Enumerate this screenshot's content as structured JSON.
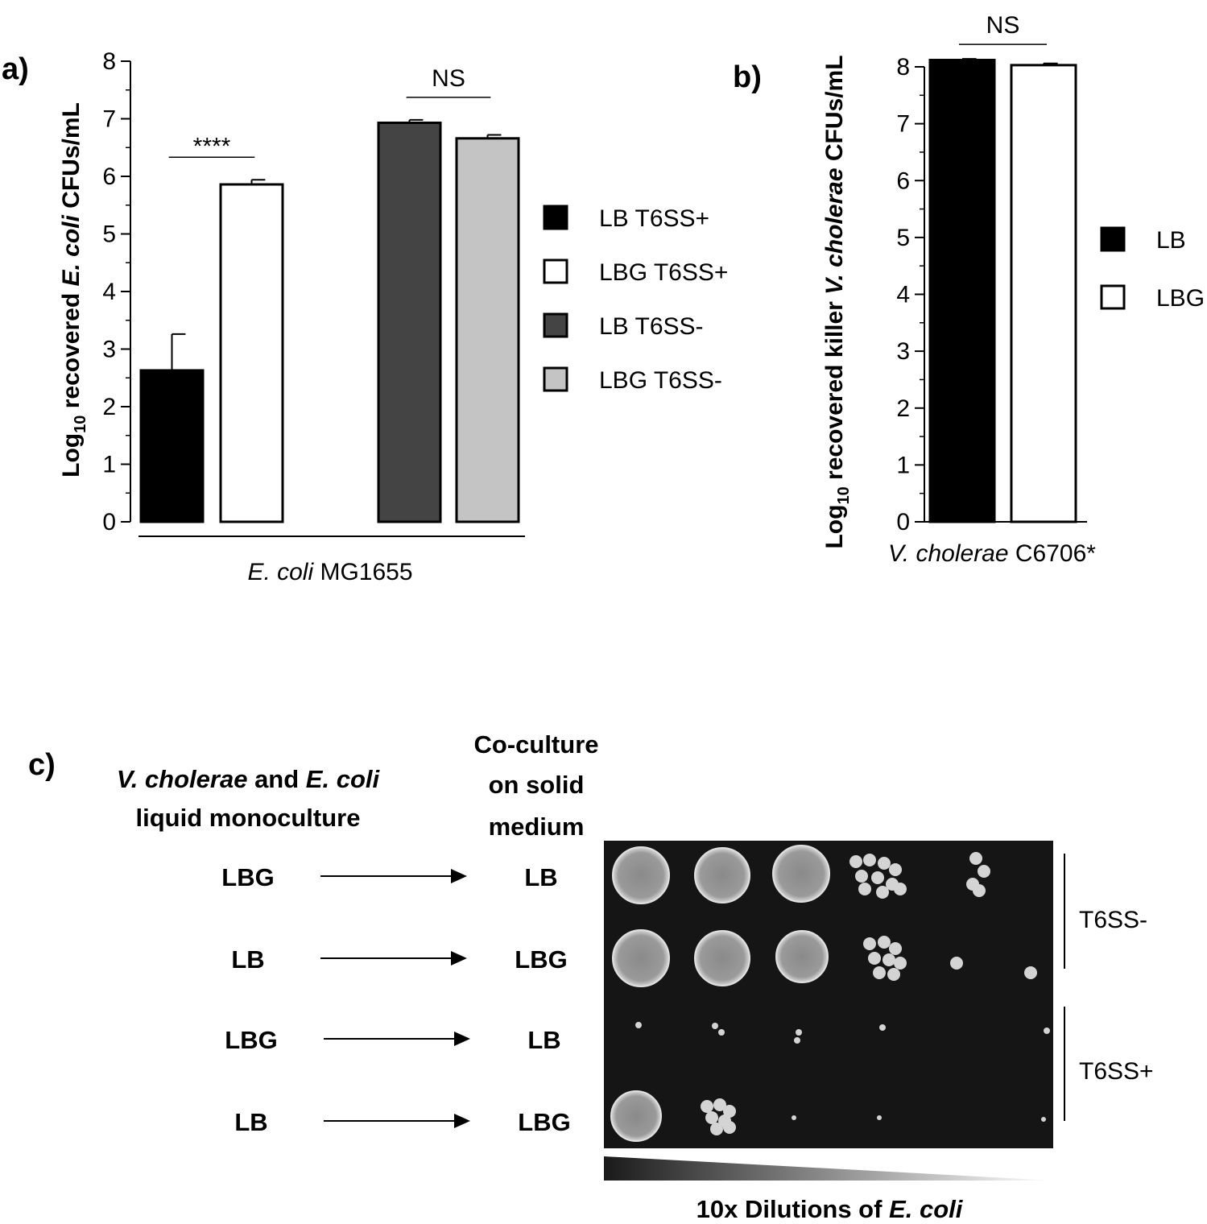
{
  "panels": [
    {
      "panel_label": "a)",
      "chart_data": {
        "type": "bar",
        "ylabel": {
          "prefix": "Log",
          "sub": "10",
          "mid": " recovered ",
          "italic": "E. coli",
          "suffix": " CFUs/mL"
        },
        "xlabel": {
          "italic": "E. coli",
          "suffix": " MG1655"
        },
        "ylim": [
          0,
          8
        ],
        "yticks": [
          "0",
          "1",
          "2",
          "3",
          "4",
          "5",
          "6",
          "7",
          "8"
        ],
        "grid": false,
        "legend_position": "right",
        "series": [
          {
            "name": "LB T6SS+",
            "value": 2.63,
            "error": 0.63,
            "color": "#000000"
          },
          {
            "name": "LBG T6SS+",
            "value": 5.86,
            "error": 0.08,
            "color": "#ffffff"
          },
          {
            "name": "LB T6SS-",
            "value": 6.93,
            "error": 0.05,
            "color": "#444444"
          },
          {
            "name": "LBG T6SS-",
            "value": 6.66,
            "error": 0.06,
            "color": "#c4c4c4"
          }
        ],
        "annotations": [
          {
            "text": "****",
            "between": [
              "LB T6SS+",
              "LBG T6SS+"
            ]
          },
          {
            "text": "NS",
            "between": [
              "LB T6SS-",
              "LBG T6SS-"
            ]
          }
        ]
      }
    },
    {
      "panel_label": "b)",
      "chart_data": {
        "type": "bar",
        "ylabel": {
          "prefix": "Log",
          "sub": "10",
          "mid": " recovered killer ",
          "italic": "V. cholerae",
          "suffix": " CFUs/mL"
        },
        "xlabel": {
          "italic": "V. cholerae",
          "suffix": " C6706*"
        },
        "ylim": [
          0,
          8
        ],
        "yticks": [
          "0",
          "1",
          "2",
          "3",
          "4",
          "5",
          "6",
          "7",
          "8"
        ],
        "grid": false,
        "legend_position": "right",
        "series": [
          {
            "name": "LB",
            "value": 8.12,
            "error": 0.02,
            "color": "#000000"
          },
          {
            "name": "LBG",
            "value": 8.03,
            "error": 0.03,
            "color": "#ffffff"
          }
        ],
        "annotations": [
          {
            "text": "NS",
            "between": [
              "LB",
              "LBG"
            ]
          }
        ]
      }
    }
  ],
  "panel_c": {
    "panel_label": "c)",
    "left_header": {
      "line1_italic1": "V. cholerae",
      "line1_mid": " and ",
      "line1_italic2": "E. coli",
      "line2": "liquid monoculture"
    },
    "right_header": [
      "Co-culture",
      "on solid",
      "medium"
    ],
    "rows": [
      {
        "from": "LBG",
        "to": "LB"
      },
      {
        "from": "LB",
        "to": "LBG"
      },
      {
        "from": "LBG",
        "to": "LB"
      },
      {
        "from": "LB",
        "to": "LBG"
      }
    ],
    "group_labels": [
      "T6SS-",
      "T6SS+"
    ],
    "dilution_label": {
      "prefix": "10x Dilutions of ",
      "italic": "E. coli"
    }
  }
}
